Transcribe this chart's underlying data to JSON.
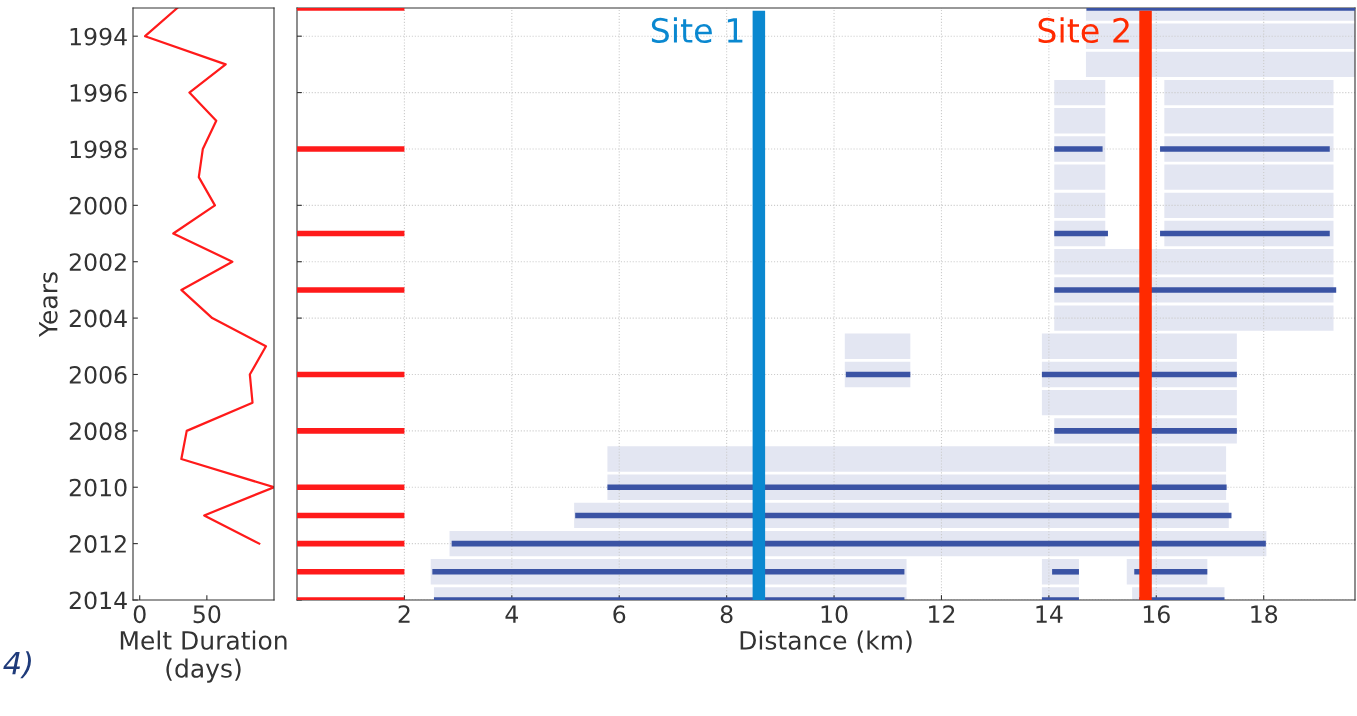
{
  "chart_data": [
    {
      "type": "line",
      "orientation": "horizontal",
      "xlabel": "Melt Duration\n(days)",
      "ylabel": "Years",
      "xlim": [
        -5,
        100
      ],
      "xticks": [
        0,
        50
      ],
      "ylim": [
        2014,
        1993
      ],
      "yticks": [
        1994,
        1996,
        1998,
        2000,
        2002,
        2004,
        2006,
        2008,
        2010,
        2012,
        2014
      ],
      "grid": false,
      "series": [
        {
          "color": "#ff1a1a",
          "x": [
            1993,
            1994,
            1995,
            1996,
            1997,
            1998,
            1999,
            2000,
            2001,
            2002,
            2003,
            2004,
            2005,
            2006,
            2007,
            2008,
            2009,
            2010,
            2011,
            2012
          ],
          "values": [
            28,
            4,
            64,
            37,
            57,
            47,
            44,
            56,
            25,
            69,
            31,
            54,
            94,
            82,
            84,
            35,
            31,
            100,
            48,
            89
          ]
        }
      ],
      "annotations": [
        "4)"
      ]
    },
    {
      "type": "bar",
      "orientation": "horizontal",
      "xlabel": "Distance (km)",
      "xlim": [
        0,
        19.7
      ],
      "xticks": [
        2,
        4,
        6,
        8,
        10,
        12,
        14,
        16,
        18
      ],
      "ylim": [
        2014,
        1993
      ],
      "tick_labels": "x",
      "grid": true,
      "series": [
        {
          "color": "#e3e6f2",
          "x": [
            1993,
            1994,
            1995,
            1996,
            1997,
            1998,
            1999,
            2000,
            2001,
            2002,
            2003,
            2004,
            2005,
            2006,
            2007,
            2008,
            2009,
            2010,
            2011,
            2012,
            2013,
            2014
          ],
          "base": [
            14.69,
            14.69,
            14.69,
            14.1,
            14.1,
            14.1,
            14.1,
            14.1,
            14.1,
            14.1,
            14.1,
            14.1,
            13.87,
            13.87,
            13.87,
            14.1,
            5.78,
            5.78,
            5.16,
            2.84,
            2.49,
            2.55
          ],
          "values": [
            5.01,
            5.01,
            5.01,
            0.95,
            0.95,
            0.95,
            0.95,
            0.95,
            0.95,
            5.2,
            5.2,
            5.2,
            3.63,
            3.63,
            3.63,
            3.4,
            11.52,
            11.52,
            12.19,
            15.21,
            8.86,
            8.8
          ]
        },
        {
          "color": "#e3e6f2",
          "x": [
            1996,
            1997,
            1998,
            1999,
            2000,
            2001
          ],
          "base": [
            16.15,
            16.15,
            16.15,
            16.15,
            16.15,
            16.15
          ],
          "values": [
            3.15,
            3.15,
            3.15,
            3.15,
            3.15,
            3.15
          ]
        },
        {
          "color": "#e3e6f2",
          "x": [
            2005,
            2006
          ],
          "base": [
            10.2,
            10.2
          ],
          "values": [
            1.22,
            1.22
          ]
        },
        {
          "color": "#e3e6f2",
          "x": [
            2013,
            2014
          ],
          "base": [
            13.87,
            13.87
          ],
          "values": [
            0.69,
            0.69
          ]
        },
        {
          "color": "#e3e6f2",
          "x": [
            2013,
            2014
          ],
          "base": [
            15.45,
            15.55
          ],
          "values": [
            1.5,
            1.72
          ]
        },
        {
          "color": "#ff1a1a",
          "line_style": "solid",
          "x": [
            1993,
            1998,
            2001,
            2003,
            2006,
            2008,
            2010,
            2011,
            2012,
            2013,
            2014
          ],
          "base": [
            0,
            0,
            0,
            0,
            0,
            0,
            0,
            0,
            0,
            0,
            0
          ],
          "values": [
            2,
            2,
            2,
            2,
            2,
            2,
            2,
            2,
            2,
            2,
            2
          ]
        },
        {
          "color": "#3a53a4",
          "line_style": "solid",
          "x": [
            1993,
            1998,
            2001,
            2003,
            2006,
            2008,
            2010,
            2011,
            2012,
            2013,
            2014
          ],
          "base": [
            14.7,
            14.1,
            14.1,
            14.1,
            10.22,
            14.1,
            5.78,
            5.18,
            2.88,
            2.52,
            2.55
          ],
          "values": [
            5.0,
            0.9,
            1.0,
            5.25,
            1.2,
            3.4,
            11.53,
            12.22,
            15.16,
            8.79,
            8.76
          ]
        },
        {
          "color": "#3a53a4",
          "line_style": "solid",
          "x": [
            1998,
            2001,
            2006,
            2013,
            2014
          ],
          "base": [
            16.07,
            16.07,
            13.87,
            14.06,
            13.87
          ],
          "values": [
            3.16,
            3.16,
            3.63,
            0.5,
            0.69
          ]
        },
        {
          "color": "#3a53a4",
          "line_style": "solid",
          "x": [
            2013,
            2014
          ],
          "base": [
            15.59,
            15.68
          ],
          "values": [
            1.36,
            1.59
          ]
        }
      ],
      "ref_lines": [
        {
          "axis": "x",
          "value": 8.6,
          "label": "Site 1",
          "color": "#0a88d0"
        },
        {
          "axis": "x",
          "value": 15.8,
          "label": "Site 2",
          "color": "#ff2a00"
        }
      ]
    }
  ]
}
